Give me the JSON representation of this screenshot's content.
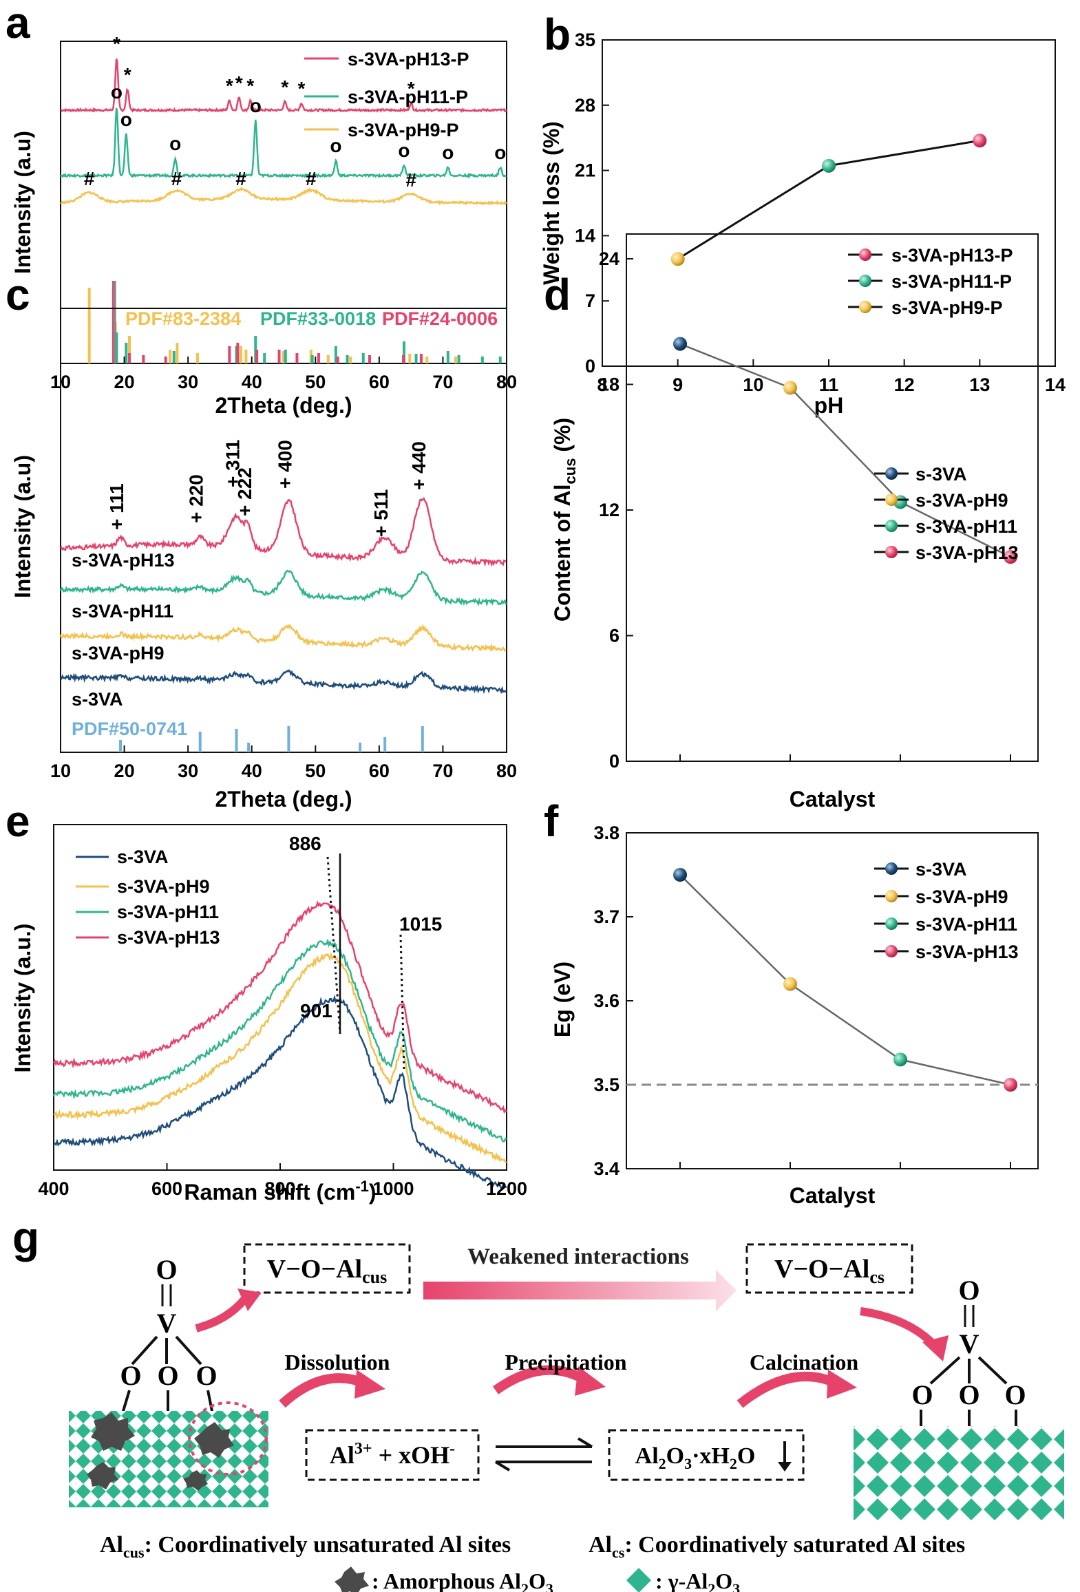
{
  "colors": {
    "pH13": "#e6436b",
    "pH11": "#2fb58e",
    "pH9": "#f3c14e",
    "base": "#1e4d7a",
    "ref": "#6fb1dc",
    "dash": "#8a8a8a"
  },
  "panel_labels": [
    "a",
    "b",
    "c",
    "d",
    "e",
    "f",
    "g"
  ],
  "chart_data": [
    {
      "id": "a",
      "type": "line",
      "xlabel": "2Theta (deg.)",
      "ylabel": "Intensity (a.u)",
      "xlim": [
        10,
        80
      ],
      "xticks": [
        "10",
        "20",
        "30",
        "40",
        "50",
        "60",
        "70",
        "80"
      ],
      "series": [
        {
          "name": "s-3VA-pH13-P",
          "color": "#e6436b",
          "marker": "*",
          "peaks": [
            18.8,
            20.5,
            36.5,
            38.0,
            39.8,
            45.2,
            47.8,
            65.0
          ]
        },
        {
          "name": "s-3VA-pH11-P",
          "color": "#2fb58e",
          "marker": "o",
          "peaks": [
            18.8,
            20.3,
            28.0,
            40.6,
            53.2,
            63.9,
            70.8,
            79.0
          ]
        },
        {
          "name": "s-3VA-pH9-P",
          "color": "#f3c14e",
          "marker": "#",
          "peaks": [
            14.5,
            28.2,
            38.3,
            49.3,
            65.0
          ]
        }
      ],
      "reference_labels": [
        "PDF#83-2384",
        "PDF#33-0018",
        "PDF#24-0006"
      ]
    },
    {
      "id": "b",
      "type": "line",
      "xlabel": "pH",
      "ylabel": "Weight loss (%)",
      "xlim": [
        8,
        14
      ],
      "ylim": [
        0,
        35
      ],
      "xticks": [
        "8",
        "9",
        "10",
        "11",
        "12",
        "13",
        "14"
      ],
      "yticks": [
        "0",
        "7",
        "14",
        "21",
        "28",
        "35"
      ],
      "x": [
        9,
        11,
        13
      ],
      "values": [
        11.5,
        21.5,
        24.2
      ],
      "legend": [
        "s-3VA-pH13-P",
        "s-3VA-pH11-P",
        "s-3VA-pH9-P"
      ]
    },
    {
      "id": "c",
      "type": "line",
      "xlabel": "2Theta (deg.)",
      "ylabel": "Intensity (a.u)",
      "xlim": [
        10,
        80
      ],
      "xticks": [
        "10",
        "20",
        "30",
        "40",
        "50",
        "60",
        "70",
        "80"
      ],
      "series": [
        "s-3VA-pH13",
        "s-3VA-pH11",
        "s-3VA-pH9",
        "s-3VA"
      ],
      "peak_labels": [
        "111",
        "220",
        "311",
        "222",
        "400",
        "511",
        "440"
      ],
      "reference_label": "PDF#50-0741",
      "reference_lines": [
        19.4,
        31.9,
        37.6,
        39.5,
        45.8,
        57.0,
        60.9,
        66.8
      ]
    },
    {
      "id": "d",
      "type": "line",
      "xlabel": "Catalyst",
      "ylabel_main": "Content of Al",
      "ylabel_sub": "cus",
      "ylabel_end": " (%)",
      "ylim": [
        0,
        24
      ],
      "yticks": [
        "0",
        "6",
        "12",
        "18",
        "24"
      ],
      "categories": [
        "s-3VA",
        "s-3VA-pH9",
        "s-3VA-pH11",
        "s-3VA-pH13"
      ],
      "values": [
        19.0,
        17.0,
        11.8,
        9.3
      ]
    },
    {
      "id": "e",
      "type": "line",
      "xlabel_main": "Raman shift (cm",
      "xlabel_sup": "-1",
      "xlabel_end": ")",
      "ylabel": "Intensity (a.u.)",
      "xlim": [
        400,
        1200
      ],
      "xticks": [
        "400",
        "600",
        "800",
        "1000",
        "1200"
      ],
      "series": [
        "s-3VA",
        "s-3VA-pH9",
        "s-3VA-pH11",
        "s-3VA-pH13"
      ],
      "annotations": [
        "886",
        "901",
        "1015"
      ]
    },
    {
      "id": "f",
      "type": "line",
      "xlabel": "Catalyst",
      "ylabel": "Eg (eV)",
      "ylim": [
        3.4,
        3.8
      ],
      "yticks": [
        "3.4",
        "3.5",
        "3.6",
        "3.7",
        "3.8"
      ],
      "categories": [
        "s-3VA",
        "s-3VA-pH9",
        "s-3VA-pH11",
        "s-3VA-pH13"
      ],
      "values": [
        3.75,
        3.62,
        3.53,
        3.5
      ],
      "reference_y": 3.5
    }
  ],
  "scheme": {
    "box_left_main": "V−O−Al",
    "box_left_sub": "cus",
    "box_right_main": "V−O−Al",
    "box_right_sub": "cs",
    "weakened": "Weakened interactions",
    "dissolution": "Dissolution",
    "precipitation": "Precipitation",
    "calcination": "Calcination",
    "eq_left_main": "Al",
    "eq_left_sup": "3+",
    "eq_left_mid": " + xOH",
    "eq_left_sup2": "-",
    "eq_right_a": "Al",
    "eq_right_sub1": "2",
    "eq_right_b": "O",
    "eq_right_sub2": "3",
    "eq_right_c": "·xH",
    "eq_right_sub3": "2",
    "eq_right_d": "O",
    "o_label": "O",
    "v_label": "V",
    "note1_main": "Al",
    "note1_sub": "cus",
    "note1_text": ":  Coordinatively unsaturated Al sites",
    "note2_main": "Al",
    "note2_sub": "cs",
    "note2_text": ":  Coordinatively saturated Al sites",
    "legend_amorphous_a": ":  Amorphous Al",
    "legend_amorphous_sub1": "2",
    "legend_amorphous_b": "O",
    "legend_amorphous_sub2": "3",
    "legend_gamma_a": ":  γ-Al",
    "legend_gamma_sub1": "2",
    "legend_gamma_b": "O",
    "legend_gamma_sub2": "3"
  }
}
